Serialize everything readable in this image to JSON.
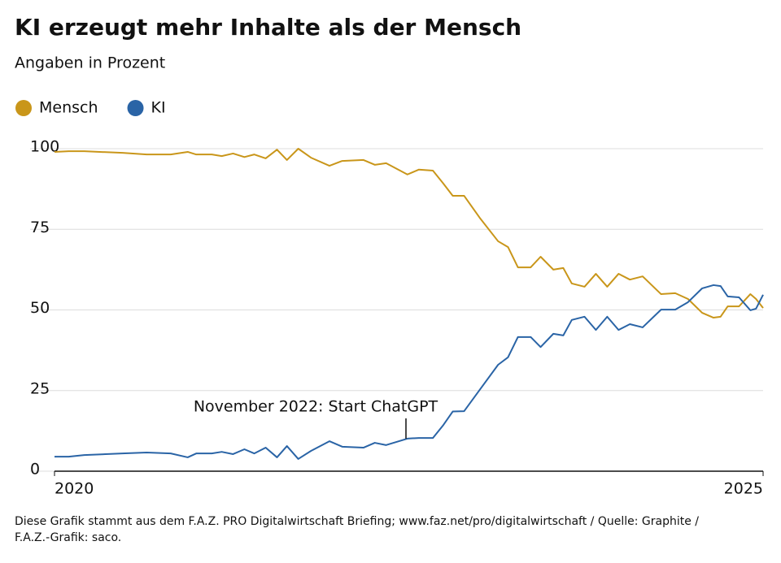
{
  "chart_data": {
    "type": "line",
    "title": "KI erzeugt mehr Inhalte als der Mensch",
    "subtitle": "Angaben in Prozent",
    "annotation": "November 2022: Start ChatGPT",
    "source": [
      "Diese Grafik stammt aus dem F.A.Z. PRO Digitalwirtschaft Briefing; www.faz.net/pro/digitalwirtschaft / Quelle: Graphite /",
      "F.A.Z.-Grafik: saco."
    ],
    "x": [
      2020.0,
      2020.1,
      2020.21,
      2020.48,
      2020.65,
      2020.82,
      2020.94,
      2021.0,
      2021.11,
      2021.18,
      2021.26,
      2021.34,
      2021.41,
      2021.49,
      2021.57,
      2021.64,
      2021.72,
      2021.81,
      2021.94,
      2022.03,
      2022.18,
      2022.26,
      2022.34,
      2022.49,
      2022.57,
      2022.67,
      2022.74,
      2022.81,
      2022.89,
      2023.0,
      2023.13,
      2023.2,
      2023.27,
      2023.36,
      2023.43,
      2023.52,
      2023.59,
      2023.65,
      2023.74,
      2023.82,
      2023.9,
      2023.98,
      2024.06,
      2024.15,
      2024.28,
      2024.38,
      2024.47,
      2024.57,
      2024.65,
      2024.7,
      2024.75,
      2024.83,
      2024.91,
      2024.95,
      2025.0
    ],
    "series": [
      {
        "name": "Mensch",
        "color": "#c9961a",
        "values": [
          99,
          99.2,
          99.2,
          98.7,
          98.2,
          98.2,
          99,
          98.2,
          98.2,
          97.7,
          98.5,
          97.4,
          98.2,
          97,
          99.7,
          96.5,
          100,
          97.2,
          94.7,
          96.2,
          96.5,
          95,
          95.5,
          92,
          93.5,
          93.2,
          89.4,
          85.4,
          85.4,
          78.6,
          71.3,
          69.5,
          63.2,
          63.2,
          66.5,
          62.5,
          63,
          58.2,
          57.2,
          61.2,
          57.2,
          61.2,
          59.4,
          60.4,
          54.9,
          55.2,
          53.4,
          49.1,
          47.6,
          47.9,
          51.1,
          51.1,
          54.9,
          53.4,
          50.6
        ]
      },
      {
        "name": "KI",
        "color": "#2a64a6",
        "values": [
          4.5,
          4.5,
          5,
          5.5,
          5.8,
          5.5,
          4.3,
          5.5,
          5.5,
          6,
          5.3,
          6.8,
          5.5,
          7.3,
          4.3,
          7.8,
          3.8,
          6.3,
          9.3,
          7.6,
          7.3,
          8.8,
          8.1,
          10.1,
          10.3,
          10.3,
          14.1,
          18.5,
          18.6,
          25.2,
          33,
          35.3,
          41.6,
          41.6,
          38.5,
          42.6,
          42.1,
          46.9,
          47.9,
          43.8,
          47.9,
          43.8,
          45.6,
          44.6,
          50.1,
          50.1,
          52.4,
          56.7,
          57.7,
          57.4,
          54.2,
          53.9,
          49.9,
          50.4,
          54.7
        ]
      }
    ],
    "xlim": [
      2020,
      2025
    ],
    "xticks": [
      2020,
      2025
    ],
    "ylim": [
      0,
      100
    ],
    "yticks": [
      0,
      25,
      50,
      75,
      100
    ],
    "grid": true
  }
}
